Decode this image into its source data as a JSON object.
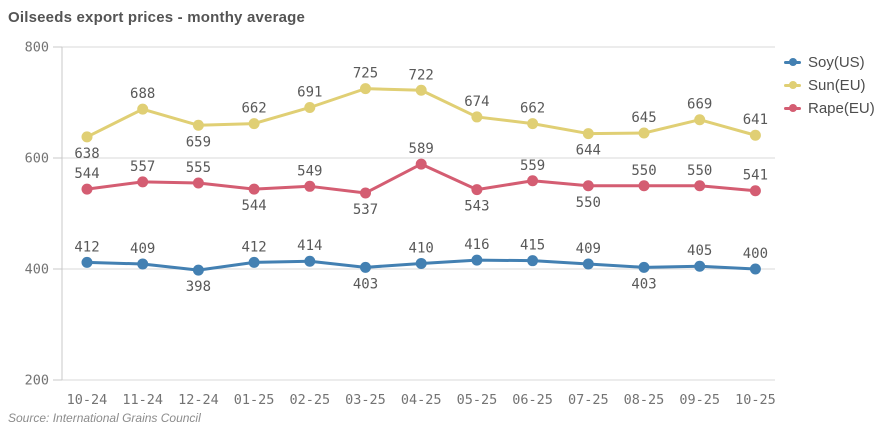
{
  "title": "Oilseeds export prices - monthy average",
  "source": "Source: International Grains Council",
  "colors": {
    "background": "#ffffff",
    "title": "#545454",
    "source": "#8c8c8c",
    "grid": "#dadada",
    "axis": "#c8c8c8",
    "tick_label": "#737373",
    "data_label": "#595959",
    "legend_label": "#4d4d4d"
  },
  "chart_data": {
    "type": "line",
    "title": "Oilseeds export prices - monthy average",
    "x": [
      "10-24",
      "11-24",
      "12-24",
      "01-25",
      "02-25",
      "03-25",
      "04-25",
      "05-25",
      "06-25",
      "07-25",
      "08-25",
      "09-25",
      "10-25"
    ],
    "series": [
      {
        "name": "Soy(US)",
        "color": "#4380b2",
        "values": [
          412,
          409,
          398,
          412,
          414,
          403,
          410,
          416,
          415,
          409,
          403,
          405,
          400
        ]
      },
      {
        "name": "Sun(EU)",
        "color": "#e0cf74",
        "values": [
          638,
          688,
          659,
          662,
          691,
          725,
          722,
          674,
          662,
          644,
          645,
          669,
          641
        ]
      },
      {
        "name": "Rape(EU)",
        "color": "#d45d72",
        "values": [
          544,
          557,
          555,
          544,
          549,
          537,
          589,
          543,
          559,
          550,
          550,
          550,
          541
        ]
      }
    ],
    "xlabel": "",
    "ylabel": "",
    "ylim": [
      200,
      800
    ],
    "yticks": [
      800,
      600,
      400,
      200
    ],
    "grid": true,
    "data_labels": true,
    "legend_position": "top-right"
  }
}
